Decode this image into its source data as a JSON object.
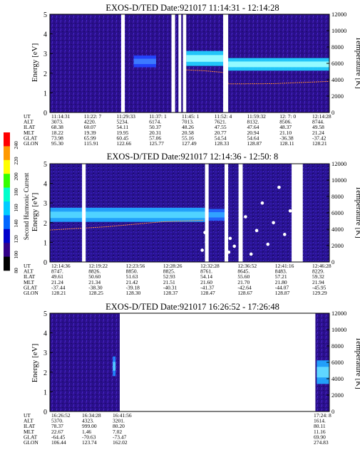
{
  "colorbar": {
    "label": "Second Harmonic Current",
    "ticks": [
      "240",
      "220",
      "200",
      "180",
      "160",
      "140",
      "120",
      "100",
      "80"
    ],
    "colors": [
      "#ff0000",
      "#ff9900",
      "#ffff00",
      "#33ff00",
      "#00ffcc",
      "#00ccff",
      "#0066ff",
      "#0000cc",
      "#330088",
      "#000000"
    ]
  },
  "chart_data": [
    {
      "type": "heatmap",
      "title": "EXOS-D/TED   Date:921017   11:14:31 - 12:14:28",
      "ylabel": "Energy [eV]",
      "y2label": "Temperature [K]",
      "ylim": [
        0,
        5
      ],
      "y2lim": [
        0,
        12000
      ],
      "yticks": [
        "0",
        "1",
        "2",
        "3",
        "4",
        "5"
      ],
      "y2ticks": [
        "0",
        "2000",
        "4000",
        "6000",
        "8000",
        "10000",
        "12000"
      ],
      "gaps": [
        [
          0.255,
          0.268
        ],
        [
          0.435,
          0.448
        ],
        [
          0.46,
          0.47
        ],
        [
          0.476,
          0.488
        ],
        [
          0.62,
          0.638
        ]
      ],
      "bands": [
        {
          "from": 0.488,
          "to": 0.62,
          "center": 2.75,
          "width": 0.38,
          "color": "#22d0ff",
          "core": "#a0ffff"
        },
        {
          "from": 0.638,
          "to": 1.0,
          "center": 2.45,
          "width": 0.32,
          "color": "#22d0ff",
          "core": "#a0ffff"
        },
        {
          "from": 0.3,
          "to": 0.38,
          "center": 2.6,
          "width": 0.3,
          "color": "#2244ff",
          "core": "#3f7fff"
        }
      ],
      "temperature_trace": [
        [
          0.488,
          5200
        ],
        [
          0.55,
          5100
        ],
        [
          0.62,
          4900
        ],
        [
          0.64,
          3500
        ],
        [
          0.8,
          3520
        ],
        [
          1.0,
          3800
        ]
      ],
      "rows": {
        "labels": [
          "UT",
          "ALT",
          "ILAT",
          "MLT",
          "GLAT",
          "GLON"
        ],
        "columns": [
          [
            "11:14:31",
            "3073.",
            "68.38",
            "18.22",
            "73.98",
            "95.30"
          ],
          [
            "11:22: 7",
            "4220.",
            "60.07",
            "19.39",
            "65.99",
            "115.91"
          ],
          [
            "11:29:33",
            "5234.",
            "54.11",
            "19.95",
            "60.45",
            "122.66"
          ],
          [
            "11:37: 1",
            "6174.",
            "50.37",
            "20.31",
            "57.06",
            "125.77"
          ],
          [
            "11:45: 1",
            "7013.",
            "48.26",
            "20.58",
            "55.16",
            "127.49"
          ],
          [
            "11:52: 4",
            "7621.",
            "47.55",
            "20.77",
            "54.54",
            "128.33"
          ],
          [
            "11:59:32",
            "8132.",
            "47.64",
            "20.94",
            "54.64",
            "128.87"
          ],
          [
            "12: 7: 0",
            "8506.",
            "48.37",
            "21.10",
            "-36.38",
            "128.11"
          ],
          [
            "12:14:28",
            "8744.",
            "49.58",
            "21.24",
            "-37.42",
            "128.21"
          ]
        ]
      }
    },
    {
      "type": "heatmap",
      "title": "EXOS-D/TED   Date:921017   12:14:36 - 12:50: 8",
      "ylabel": "Energy [eV]",
      "y2label": "Temperature [K]",
      "ylim": [
        0,
        5
      ],
      "y2lim": [
        0,
        12000
      ],
      "yticks": [
        "0",
        "1",
        "2",
        "3",
        "4",
        "5"
      ],
      "y2ticks": [
        "0",
        "2000",
        "4000",
        "6000",
        "8000",
        "10000",
        "12000"
      ],
      "gaps": [
        [
          0.115,
          0.128
        ],
        [
          0.555,
          0.568
        ],
        [
          0.625,
          0.638
        ],
        [
          0.675,
          0.69
        ],
        [
          0.865,
          0.905
        ]
      ],
      "bands": [
        {
          "from": 0.0,
          "to": 0.555,
          "center": 2.4,
          "width": 0.36,
          "color": "#22a8ff",
          "core": "#55d8ff"
        },
        {
          "from": 0.568,
          "to": 0.625,
          "center": 2.4,
          "width": 0.3,
          "color": "#2266ff",
          "core": "#33aaff"
        }
      ],
      "temperature_trace": [
        [
          0.0,
          3900
        ],
        [
          0.2,
          4300
        ],
        [
          0.4,
          4900
        ],
        [
          0.55,
          5100
        ]
      ],
      "rows": {
        "labels": [
          "UT",
          "ALT",
          "ILAT",
          "MLT",
          "GLAT",
          "GLON"
        ],
        "columns": [
          [
            "12:14:36",
            "8747.",
            "49.61",
            "21.24",
            "-37.44",
            "128.21"
          ],
          [
            "12:19:22",
            "8826.",
            "50.60",
            "21.34",
            "-38.30",
            "128.25"
          ],
          [
            "12:23:56",
            "8850.",
            "51.63",
            "21.42",
            "-39.18",
            "128.30"
          ],
          [
            "12:28:26",
            "8825.",
            "52.93",
            "21.51",
            "-40.31",
            "128.37"
          ],
          [
            "12:32:28",
            "8761.",
            "54.14",
            "21.60",
            "-41.37",
            "128.47"
          ],
          [
            "12:36:52",
            "8645.",
            "55.60",
            "21.70",
            "-42.64",
            "128.67"
          ],
          [
            "12:41:16",
            "8483.",
            "57.21",
            "21.80",
            "-44.07",
            "128.87"
          ],
          [
            "12:46:28",
            "8229.",
            "59.32",
            "21.94",
            "-45.95",
            "129.29"
          ]
        ]
      }
    },
    {
      "type": "heatmap",
      "title": "EXOS-D/TED   Date:921017   16:26:52 - 17:26:48",
      "ylabel": "Energy [eV]",
      "y2label": "Temperature [K]",
      "ylim": [
        0,
        5
      ],
      "y2lim": [
        0,
        12000
      ],
      "yticks": [
        "0",
        "1",
        "2",
        "3",
        "4",
        "5"
      ],
      "y2ticks": [
        "0",
        "2000",
        "4000",
        "6000",
        "8000",
        "10000",
        "12000"
      ],
      "gaps": [
        [
          0.25,
          0.95
        ]
      ],
      "bands": [
        {
          "from": 0.225,
          "to": 0.235,
          "center": 2.3,
          "width": 0.5,
          "color": "#2288ff",
          "core": "#55ccff"
        },
        {
          "from": 0.955,
          "to": 1.0,
          "center": 2.0,
          "width": 0.6,
          "color": "#22a8ff",
          "core": "#66ddff"
        }
      ],
      "temperature_trace": [],
      "rows": {
        "labels": [
          "UT",
          "ALT",
          "ILAT",
          "MLT",
          "GLAT",
          "GLON"
        ],
        "columns": [
          [
            "16:26:52",
            "5370.",
            "78.37",
            "22.67",
            "-64.45",
            "106.44"
          ],
          [
            "16:34:28",
            "4323.",
            "999.00",
            "1.46",
            "-70.63",
            "123.74"
          ],
          [
            "16:41:56",
            "3201.",
            "80.20",
            "7.02",
            "-73.47",
            "162.02"
          ],
          [
            "17:24: 8",
            "1614.",
            "80.11",
            "11.16",
            "69.90",
            "274.83"
          ]
        ]
      }
    }
  ]
}
